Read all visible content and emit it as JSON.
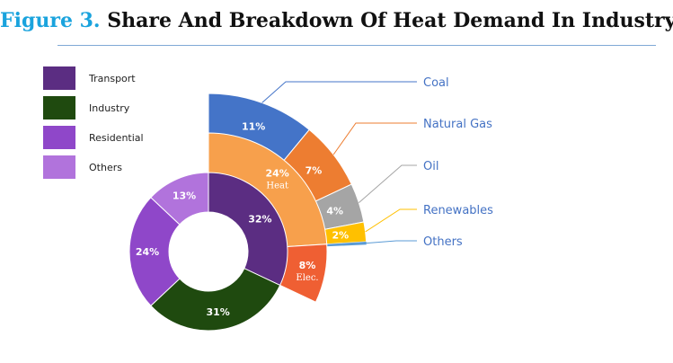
{
  "title_prefix": "Figure 3.",
  "title_text": "Share And Breakdown Of Heat Demand In Industry",
  "chart_data": [
    {
      "type": "pie",
      "variant": "donut",
      "slices": [
        {
          "label": "Transport",
          "value": 32,
          "value_label": "32%",
          "color": "#5b2d82"
        },
        {
          "label": "Industry",
          "value": 31,
          "value_label": "31%",
          "color": "#1f4a0f"
        },
        {
          "label": "Residential",
          "value": 24,
          "value_label": "24%",
          "color": "#8f47c9"
        },
        {
          "label": "Others",
          "value": 13,
          "value_label": "13%",
          "color": "#b173dc"
        }
      ],
      "legend": [
        "Transport",
        "Industry",
        "Residential",
        "Others"
      ],
      "legend_position": "top-left"
    },
    {
      "type": "pie",
      "variant": "breakdown of Industry",
      "slices": [
        {
          "label": "Heat",
          "value": 24,
          "value_label": "24%",
          "color": "#f7a04c"
        },
        {
          "label": "Elec.",
          "value": 8,
          "value_label": "8%",
          "color": "#ef5f33"
        }
      ]
    },
    {
      "type": "pie",
      "variant": "breakdown of Heat",
      "slices": [
        {
          "label": "Coal",
          "value": 11,
          "value_label": "11%",
          "color": "#4474c8"
        },
        {
          "label": "Natural Gas",
          "value": 7,
          "value_label": "7%",
          "color": "#ed7d31"
        },
        {
          "label": "Oil",
          "value": 4,
          "value_label": "4%",
          "color": "#a5a5a5"
        },
        {
          "label": "Renewables",
          "value": 2,
          "value_label": "2%",
          "color": "#ffc000"
        },
        {
          "label": "Others",
          "value": 0.3,
          "value_label": "",
          "color": "#5b9bd5"
        }
      ],
      "callout_color": "#4472c4"
    }
  ]
}
